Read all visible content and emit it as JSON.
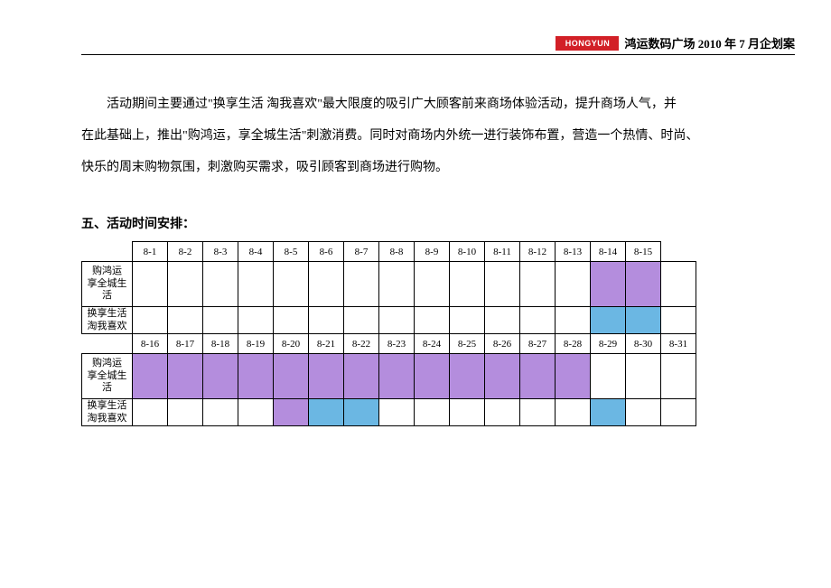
{
  "header": {
    "logo_text": "HONGYUN",
    "title": "鸿运数码广场 2010 年 7 月企划案"
  },
  "paragraph": {
    "line1_a": "活动期间主要通过\"换享生活 淘我喜欢\"最大限度的吸引广大顾客前来商场体验活动，提升商场人气，并",
    "line2": "在此基础上，推出\"购鸿运，享全城生活\"刺激消费。同时对商场内外统一进行装饰布置，营造一个热情、时尚、",
    "line3": "快乐的周末购物氛围，刺激购买需求，吸引顾客到商场进行购物。"
  },
  "section_title": "五、活动时间安排：",
  "schedule": {
    "row_labels": {
      "a": "购鸿运\n享全城生\n活",
      "b": "换享生活\n淘我喜欢"
    },
    "dates_top": [
      "8-1",
      "8-2",
      "8-3",
      "8-4",
      "8-5",
      "8-6",
      "8-7",
      "8-8",
      "8-9",
      "8-10",
      "8-11",
      "8-12",
      "8-13",
      "8-14",
      "8-15",
      ""
    ],
    "dates_bottom": [
      "8-16",
      "8-17",
      "8-18",
      "8-19",
      "8-20",
      "8-21",
      "8-22",
      "8-23",
      "8-24",
      "8-25",
      "8-26",
      "8-27",
      "8-28",
      "8-29",
      "8-30",
      "8-31"
    ],
    "colors": {
      "purple": "#b48ddd",
      "blue": "#6bb7e3",
      "none": "#ffffff"
    },
    "grid": {
      "top_a": [
        "none",
        "none",
        "none",
        "none",
        "none",
        "none",
        "none",
        "none",
        "none",
        "none",
        "none",
        "none",
        "none",
        "purple",
        "purple",
        "none"
      ],
      "top_b": [
        "none",
        "none",
        "none",
        "none",
        "none",
        "none",
        "none",
        "none",
        "none",
        "none",
        "none",
        "none",
        "none",
        "blue",
        "blue",
        "none"
      ],
      "bot_a": [
        "purple",
        "purple",
        "purple",
        "purple",
        "purple",
        "purple",
        "purple",
        "purple",
        "purple",
        "purple",
        "purple",
        "purple",
        "purple",
        "none",
        "none",
        "none"
      ],
      "bot_b": [
        "none",
        "none",
        "none",
        "none",
        "purple",
        "blue",
        "blue",
        "none",
        "none",
        "none",
        "none",
        "none",
        "none",
        "blue",
        "none",
        "none"
      ]
    }
  }
}
